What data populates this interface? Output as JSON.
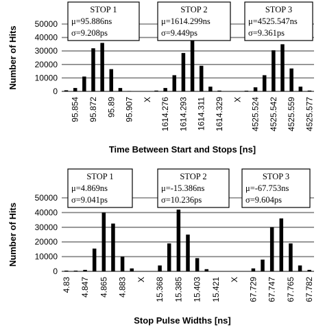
{
  "chart_data": [
    {
      "type": "bar",
      "xlabel": "Time Between Start and Stops [ns]",
      "ylabel": "Number of Hits",
      "ylim": [
        0,
        50000
      ],
      "yticks": [
        "0",
        "10000",
        "20000",
        "30000",
        "40000",
        "50000"
      ],
      "grid": true,
      "categories": [
        "",
        "95.854",
        "",
        "95.872",
        "",
        "95.89",
        "",
        "95.907",
        "",
        "X",
        "",
        "1614.276",
        "",
        "1614.293",
        "",
        "1614.311",
        "",
        "1614.329",
        "",
        "X",
        "",
        "4525.524",
        "",
        "4525.542",
        "",
        "4525.559",
        "",
        "4525.577"
      ],
      "values": [
        800,
        2500,
        11000,
        32000,
        36000,
        16500,
        2500,
        300,
        0,
        0,
        600,
        2500,
        12000,
        28500,
        38500,
        19000,
        3500,
        600,
        0,
        0,
        500,
        3000,
        12000,
        30500,
        35000,
        17000,
        3500,
        600
      ],
      "annotations": [
        {
          "title": "STOP 1",
          "lines": [
            "μ=95.886ns",
            "σ=9.208ps"
          ]
        },
        {
          "title": "STOP 2",
          "lines": [
            "μ=1614.299ns",
            "σ=9.449ps"
          ]
        },
        {
          "title": "STOP 3",
          "lines": [
            "μ=4525.547ns",
            "σ=9.361ps"
          ]
        }
      ]
    },
    {
      "type": "bar",
      "xlabel": "Stop Pulse Widths [ns]",
      "ylabel": "Number of Hits",
      "ylim": [
        0,
        50000
      ],
      "yticks": [
        "0",
        "10000",
        "20000",
        "30000",
        "40000",
        "50000"
      ],
      "grid": true,
      "categories": [
        "4.83",
        "",
        "4.847",
        "",
        "4.865",
        "",
        "4.883",
        "",
        "X",
        "",
        "15.368",
        "",
        "15.385",
        "",
        "15.403",
        "",
        "15.421",
        "",
        "X",
        "",
        "67.729",
        "",
        "67.747",
        "",
        "67.765",
        "",
        "67.782"
      ],
      "values": [
        500,
        500,
        1000,
        15500,
        40000,
        32500,
        10000,
        2000,
        0,
        0,
        4000,
        19000,
        42000,
        25000,
        9000,
        1500,
        0,
        0,
        0,
        0,
        2000,
        8000,
        30000,
        36000,
        19000,
        4000,
        1000
      ],
      "annotations": [
        {
          "title": "STOP 1",
          "lines": [
            "μ=4.869ns",
            "σ=9.041ps"
          ]
        },
        {
          "title": "STOP 2",
          "lines": [
            "μ=-15.386ns",
            "σ=10.236ps"
          ]
        },
        {
          "title": "STOP 3",
          "lines": [
            "μ=-67.753ns",
            "σ=9.604ps"
          ]
        }
      ]
    }
  ],
  "colors": {
    "bars": "#000000",
    "grid": "#808080",
    "box_border": "#000000"
  }
}
